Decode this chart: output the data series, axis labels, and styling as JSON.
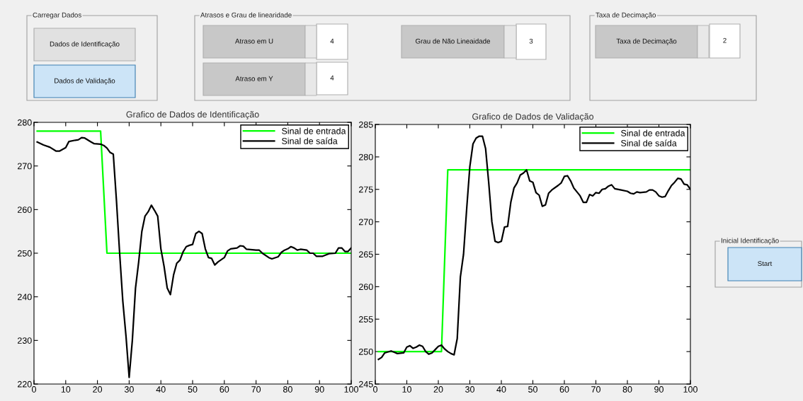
{
  "chart_data": [
    {
      "type": "line",
      "title": "Grafico de Dados de Identificação",
      "xlim": [
        0,
        100
      ],
      "ylim": [
        220,
        280
      ],
      "xticks": [
        0,
        10,
        20,
        30,
        40,
        50,
        60,
        70,
        80,
        90,
        100
      ],
      "yticks": [
        220,
        230,
        240,
        250,
        260,
        270,
        280
      ],
      "grid": false,
      "legend": "top right",
      "series": [
        {
          "name": "Sinal de entrada",
          "color": "#00ff00",
          "x": [
            1,
            21,
            23,
            100
          ],
          "values": [
            278,
            278,
            250,
            250
          ]
        },
        {
          "name": "Sinal de saída",
          "color": "#000000",
          "x": [
            1,
            3,
            5,
            7,
            8,
            10,
            11,
            13,
            14,
            15,
            16,
            18,
            19,
            21,
            22,
            23,
            24,
            25,
            26,
            27,
            28,
            29,
            30,
            31,
            32,
            33,
            34,
            35,
            36,
            37,
            38,
            39,
            40,
            41,
            42,
            43,
            44,
            45,
            46,
            47,
            48,
            49,
            50,
            51,
            52,
            53,
            54,
            55,
            56,
            57,
            58,
            60,
            61,
            62,
            64,
            65,
            66,
            67,
            70,
            71,
            72,
            74,
            75,
            77,
            78,
            79,
            80,
            81,
            82,
            83,
            84,
            86,
            87,
            88,
            89,
            91,
            92,
            93,
            95,
            96,
            97,
            98,
            99,
            100
          ],
          "values": [
            275.5,
            274.8,
            274.3,
            273.4,
            273.4,
            274.2,
            275.6,
            275.9,
            276.0,
            276.5,
            276.4,
            275.5,
            275.1,
            275.0,
            274.7,
            274.1,
            273.1,
            272.7,
            262,
            250,
            239,
            231,
            221.5,
            230,
            242,
            248,
            255,
            258.5,
            259.5,
            261,
            259.8,
            258.5,
            251,
            247,
            242,
            240.5,
            245,
            247.7,
            248.4,
            250.3,
            251.5,
            251.8,
            252,
            254.5,
            255,
            254.5,
            251,
            249,
            248.8,
            247.3,
            248,
            249,
            250.5,
            251,
            251.2,
            251.7,
            251.6,
            250.9,
            250.7,
            250.7,
            250,
            249,
            248.7,
            249.2,
            250.2,
            250.7,
            251.0,
            251.5,
            251.2,
            250.7,
            250.9,
            250.7,
            250.0,
            250.0,
            249.3,
            249.3,
            249.6,
            249.9,
            250.0,
            251.2,
            251.2,
            250.4,
            250.4,
            251.2
          ]
        }
      ]
    },
    {
      "type": "line",
      "title": "Grafico de Dados de Validação",
      "xlim": [
        0,
        100
      ],
      "ylim": [
        245,
        285
      ],
      "xticks": [
        0,
        10,
        20,
        30,
        40,
        50,
        60,
        70,
        80,
        90,
        100
      ],
      "yticks": [
        245,
        250,
        255,
        260,
        265,
        270,
        275,
        280,
        285
      ],
      "grid": false,
      "legend": "top right",
      "series": [
        {
          "name": "Sinal de entrada",
          "color": "#00ff00",
          "x": [
            1,
            21,
            23,
            100
          ],
          "values": [
            250,
            250,
            278,
            278
          ]
        },
        {
          "name": "Sinal de saída",
          "color": "#000000",
          "x": [
            1,
            2,
            3,
            5,
            6,
            7,
            9,
            10,
            11,
            12,
            13,
            14,
            15,
            16,
            17,
            18,
            19,
            20,
            21,
            22,
            23,
            24,
            25,
            26,
            27,
            28,
            29,
            30,
            31,
            32,
            33,
            34,
            35,
            36,
            37,
            38,
            39,
            40,
            41,
            42,
            43,
            44,
            45,
            46,
            47,
            48,
            49,
            50,
            51,
            52,
            53,
            54,
            55,
            56,
            58,
            59,
            60,
            61,
            62,
            63,
            64,
            65,
            66,
            67,
            68,
            69,
            70,
            71,
            72,
            73,
            74,
            75,
            76,
            78,
            80,
            81,
            82,
            83,
            84,
            86,
            87,
            88,
            89,
            90,
            91,
            92,
            93,
            94,
            95,
            96,
            97,
            98,
            99,
            100
          ],
          "values": [
            248.8,
            249.1,
            249.8,
            250.1,
            249.9,
            249.7,
            249.8,
            250.7,
            250.9,
            250.5,
            250.7,
            251.0,
            250.8,
            250.0,
            249.6,
            249.8,
            250.3,
            250.8,
            251.0,
            250.4,
            250.0,
            249.7,
            249.5,
            252,
            261.5,
            265,
            272,
            278.5,
            282,
            282.9,
            283.2,
            283.2,
            281.3,
            276,
            270,
            267,
            266.8,
            267,
            269.2,
            269.3,
            273,
            275.2,
            276,
            277.2,
            277.5,
            278.0,
            276.3,
            276.1,
            274.5,
            274.1,
            272.4,
            272.6,
            274.4,
            274.9,
            275.6,
            276.0,
            277.0,
            277.1,
            276.3,
            275.2,
            274.6,
            274.0,
            273.0,
            273.0,
            274.2,
            274.0,
            274.5,
            274.4,
            275.0,
            275.1,
            275.5,
            275.7,
            275.1,
            274.9,
            274.7,
            274.4,
            274.3,
            274.6,
            274.5,
            274.6,
            274.9,
            274.9,
            274.6,
            274.0,
            273.8,
            273.9,
            274.8,
            275.6,
            276.1,
            276.7,
            276.6,
            275.8,
            275.7,
            275.0
          ]
        }
      ]
    },
    {
      "type": "other",
      "annotations": [
        "Carregar Dados",
        "Dados de Identificação",
        "Dados de Validação",
        "Atrasos e Grau de linearidade",
        "Atraso em U",
        "4",
        "Atraso em Y",
        "4",
        "Grau de Não Lineaidade",
        "3",
        "Taxa de Decimação",
        "Taxa de Decimação",
        "2",
        "Inicial Identificação",
        "Start"
      ]
    }
  ]
}
